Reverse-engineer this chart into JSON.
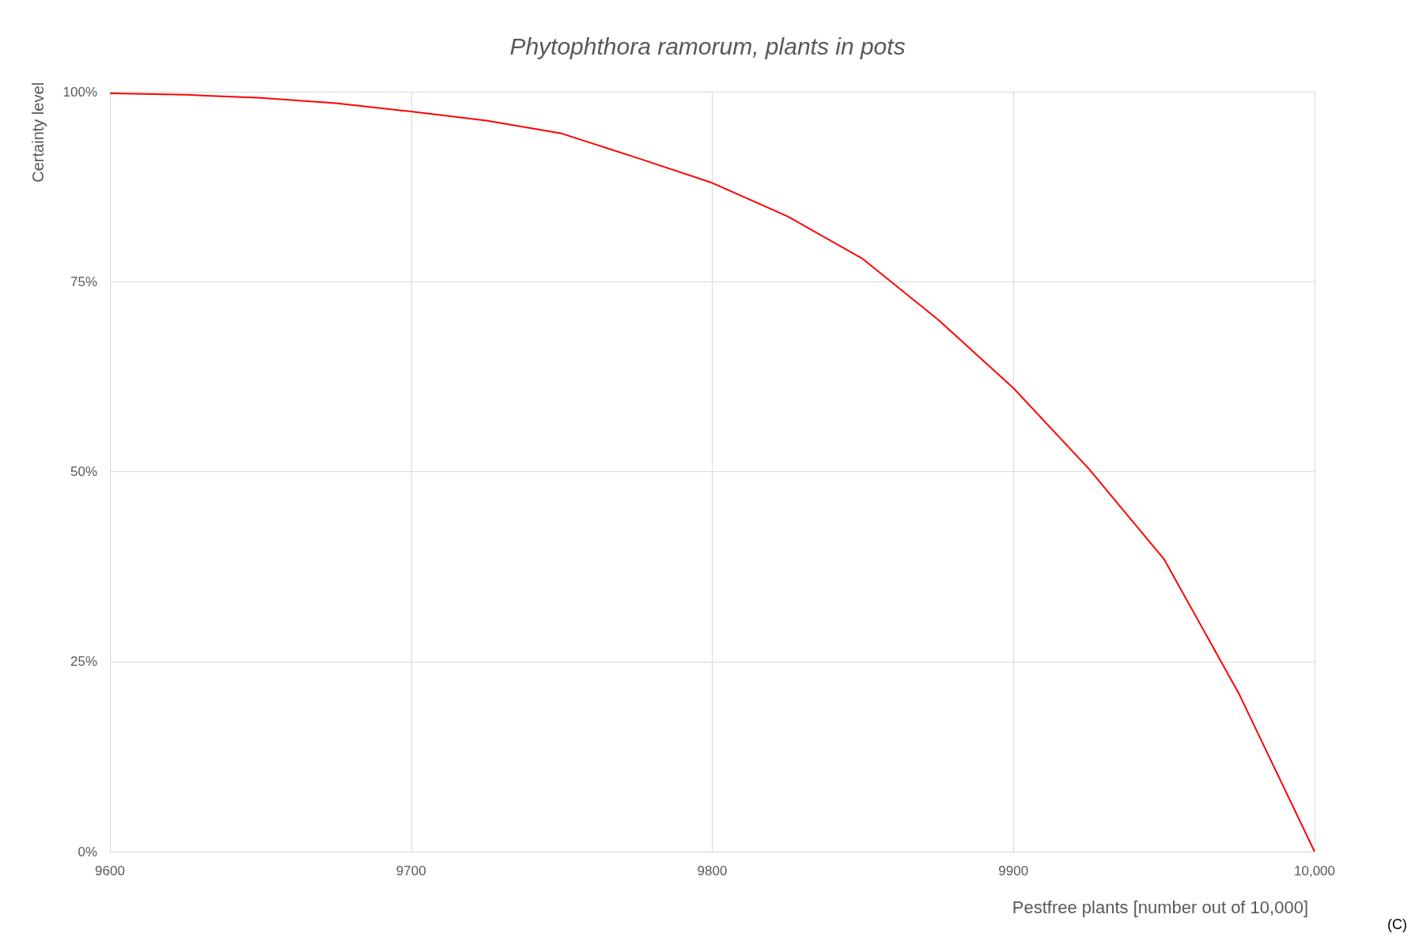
{
  "chart_data": {
    "type": "line",
    "title": "Phytophthora ramorum, plants in pots",
    "xlabel": "Pestfree plants [number out of 10,000]",
    "ylabel": "Certainty level",
    "annotations": [
      "(C)"
    ],
    "x": [
      9600,
      9625,
      9650,
      9675,
      9700,
      9725,
      9750,
      9775,
      9800,
      9825,
      9850,
      9875,
      9900,
      9925,
      9950,
      9975,
      10000
    ],
    "series": [
      {
        "color": "#ff0000",
        "values": [
          99.8,
          99.6,
          99.2,
          98.5,
          97.4,
          96.2,
          94.5,
          91.3,
          88.0,
          83.6,
          78,
          70,
          61,
          50.4,
          38.5,
          20.7,
          0
        ]
      }
    ],
    "xlim": [
      9600,
      10000
    ],
    "xticks": [
      9600,
      9700,
      9800,
      9900,
      {
        "value": 10000,
        "label": "10,000"
      }
    ],
    "ylim": [
      0,
      100
    ],
    "yticks": [
      {
        "value": 0,
        "label": "0%"
      },
      {
        "value": 25,
        "label": "25%"
      },
      {
        "value": 50,
        "label": "50%"
      },
      {
        "value": 75,
        "label": "75%"
      },
      {
        "value": 100,
        "label": "100%"
      }
    ],
    "grid": true
  }
}
